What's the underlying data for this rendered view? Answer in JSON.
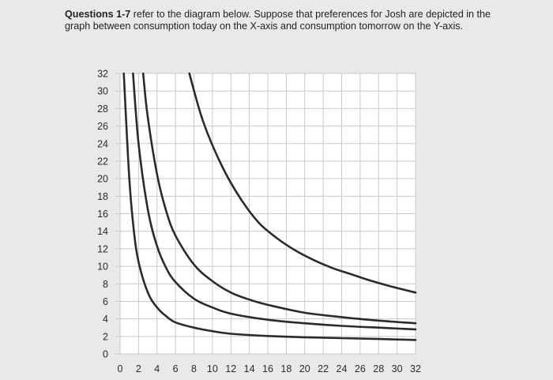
{
  "question": {
    "bold": "Questions 1-7",
    "text": " refer to the diagram below. Suppose that preferences for Josh are depicted in the graph between consumption today on the X-axis and consumption tomorrow on the Y-axis."
  },
  "chart_data": {
    "type": "line",
    "title": "",
    "xlabel": "",
    "ylabel": "",
    "xlim": [
      0,
      32
    ],
    "ylim": [
      0,
      32
    ],
    "xticks": [
      "0",
      "2",
      "4",
      "6",
      "8",
      "10",
      "12",
      "14",
      "16",
      "18",
      "20",
      "22",
      "24",
      "26",
      "28",
      "30",
      "32"
    ],
    "yticks": [
      "0",
      "2",
      "4",
      "6",
      "8",
      "10",
      "12",
      "14",
      "16",
      "18",
      "20",
      "22",
      "24",
      "26",
      "28",
      "30",
      "32"
    ],
    "grid": true,
    "series": [
      {
        "x": [
          0.4,
          1.0,
          1.5,
          2.0,
          3.0,
          4.0,
          5.0,
          6.0,
          8.0,
          10.0,
          12.0,
          16.0,
          20.0,
          24.0,
          28.0,
          32.0
        ],
        "y": [
          32.0,
          20.0,
          14.0,
          10.5,
          7.0,
          5.3,
          4.3,
          3.6,
          3.0,
          2.6,
          2.3,
          2.05,
          1.9,
          1.8,
          1.7,
          1.6
        ]
      },
      {
        "x": [
          1.4,
          2.0,
          3.0,
          4.0,
          5.0,
          6.0,
          8.0,
          10.0,
          12.0,
          16.0,
          20.0,
          24.0,
          28.0,
          32.0
        ],
        "y": [
          32.0,
          24.0,
          16.5,
          12.3,
          9.8,
          8.2,
          6.3,
          5.3,
          4.6,
          3.9,
          3.5,
          3.2,
          3.0,
          2.8
        ]
      },
      {
        "x": [
          2.5,
          3.0,
          4.0,
          5.0,
          6.0,
          8.0,
          10.0,
          12.0,
          14.0,
          16.0,
          20.0,
          24.0,
          28.0,
          32.0
        ],
        "y": [
          32.0,
          27.0,
          20.5,
          16.3,
          13.5,
          10.2,
          8.3,
          7.0,
          6.2,
          5.6,
          4.7,
          4.2,
          3.8,
          3.5
        ]
      },
      {
        "x": [
          7.5,
          9.0,
          11.0,
          13.0,
          15.0,
          17.0,
          19.0,
          21.0,
          23.0,
          25.0,
          27.0,
          29.0,
          32.0
        ],
        "y": [
          32.0,
          26.5,
          21.5,
          17.8,
          15.0,
          13.2,
          11.8,
          10.7,
          9.8,
          9.1,
          8.4,
          7.8,
          7.0
        ]
      }
    ]
  }
}
